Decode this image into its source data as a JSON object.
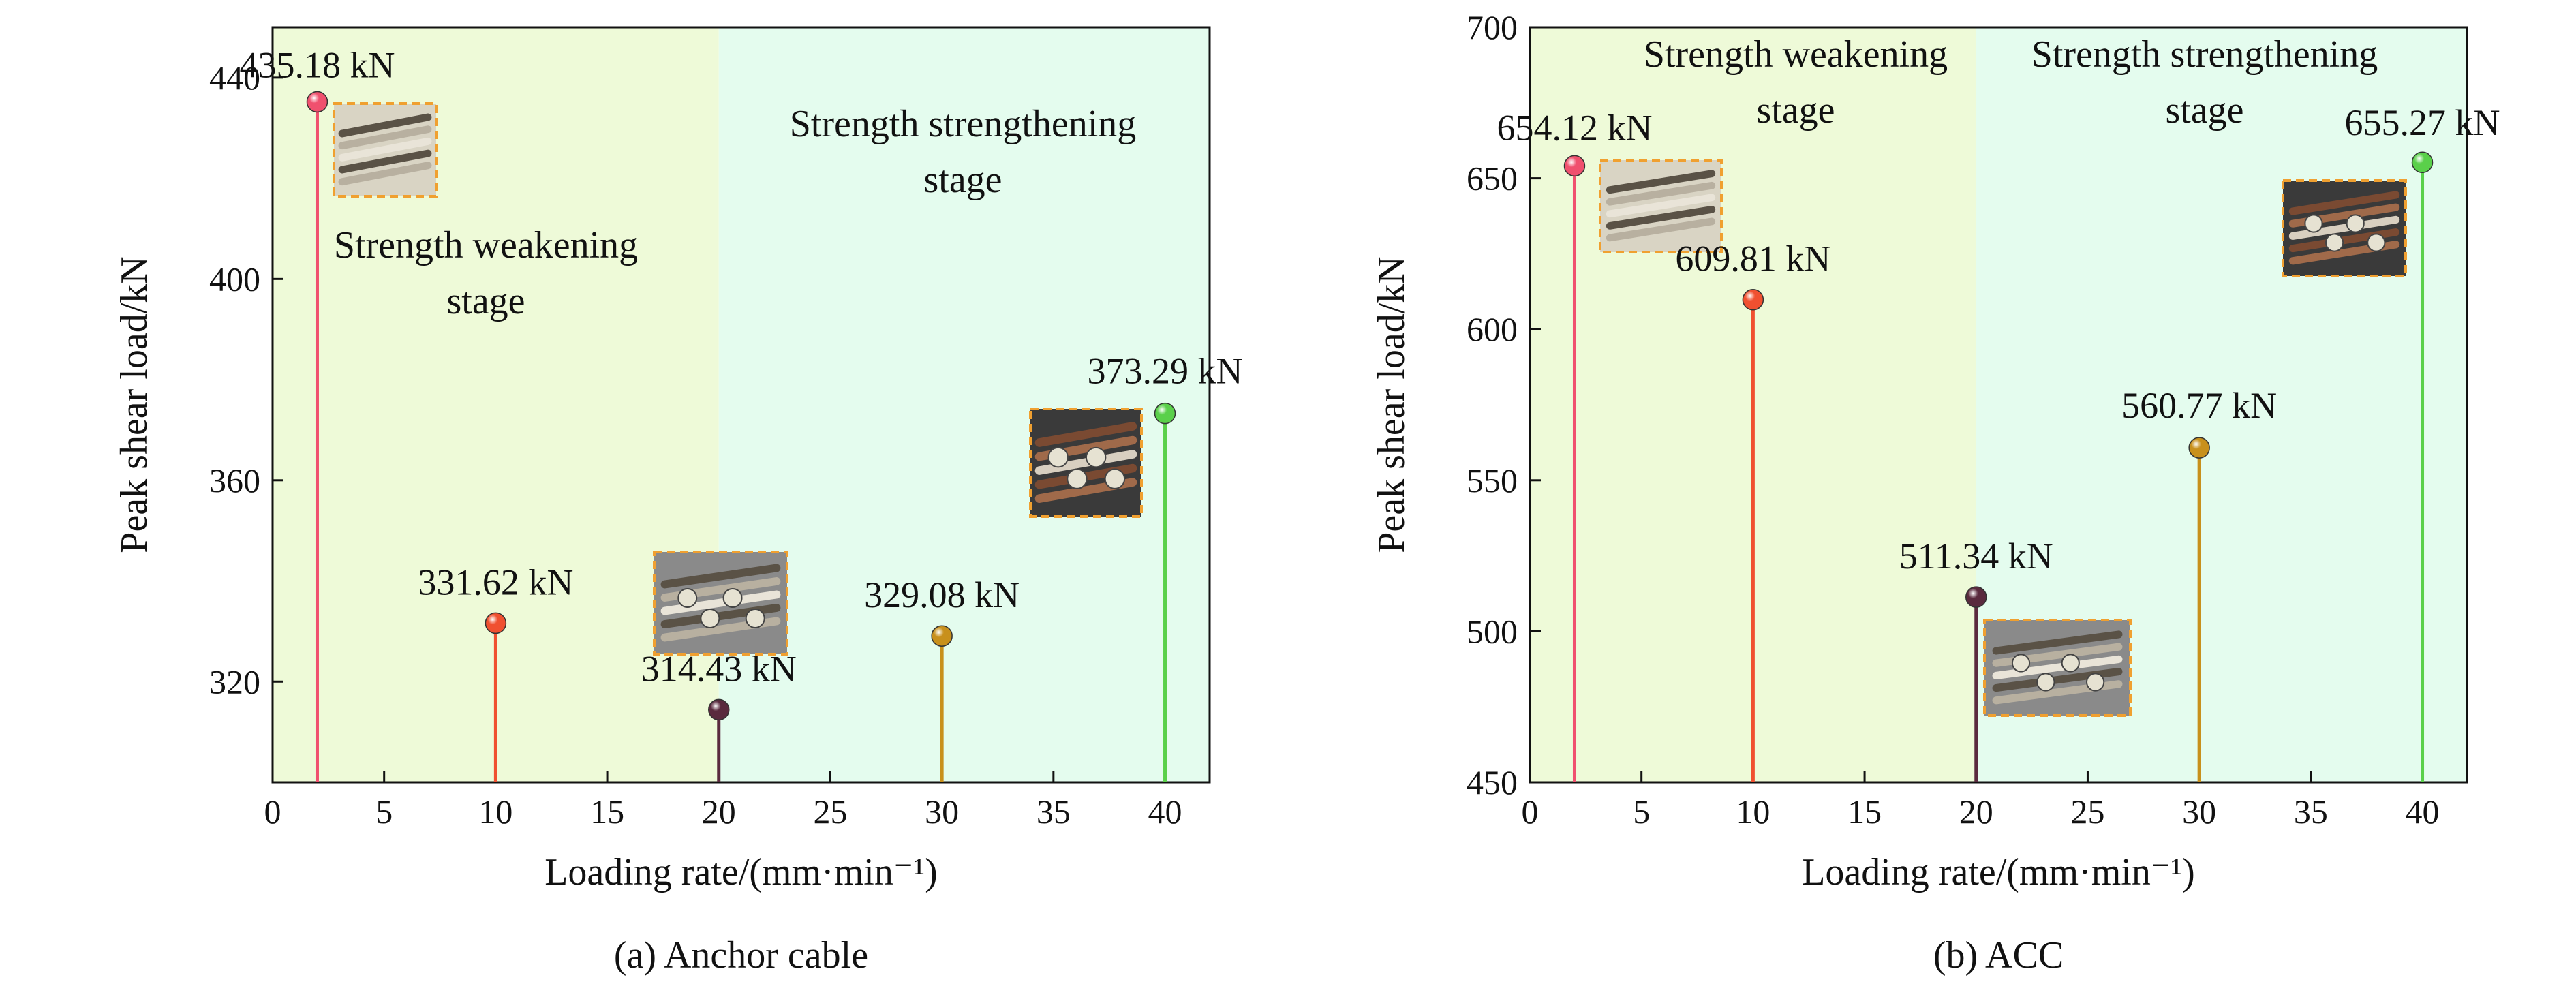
{
  "figure": {
    "panels": [
      {
        "caption": "(a) Anchor cable",
        "xlabel": "Loading rate/(mm·min⁻¹)",
        "ylabel": "Peak shear load/kN",
        "regions": [
          {
            "label_lines": [
              "Strength weakening",
              "stage"
            ],
            "x_range": [
              0,
              20
            ],
            "color": "#eefad8"
          },
          {
            "label_lines": [
              "Strength strengthening",
              "stage"
            ],
            "x_range": [
              20,
              42
            ],
            "color": "#e4fcee"
          }
        ]
      },
      {
        "caption": "(b) ACC",
        "xlabel": "Loading rate/(mm·min⁻¹)",
        "ylabel": "Peak shear load/kN",
        "regions": [
          {
            "label_lines": [
              "Strength weakening",
              "stage"
            ],
            "x_range": [
              0,
              20
            ],
            "color": "#eefad8"
          },
          {
            "label_lines": [
              "Strength strengthening",
              "stage"
            ],
            "x_range": [
              20,
              42
            ],
            "color": "#e4fcee"
          }
        ]
      }
    ]
  },
  "chart_data": [
    {
      "type": "stem",
      "title": "",
      "xlabel": "Loading rate/(mm·min⁻¹)",
      "ylabel": "Peak shear load/kN",
      "xlim": [
        0,
        42
      ],
      "ylim": [
        300,
        450
      ],
      "xticks": [
        0,
        5,
        10,
        15,
        20,
        25,
        30,
        35,
        40
      ],
      "yticks": [
        320,
        360,
        400,
        440
      ],
      "points": [
        {
          "x": 2,
          "y": 435.18,
          "label": "435.18 kN",
          "color": "#f0506e"
        },
        {
          "x": 10,
          "y": 331.62,
          "label": "331.62 kN",
          "color": "#f05030"
        },
        {
          "x": 20,
          "y": 314.43,
          "label": "314.43 kN",
          "color": "#5a2a3e"
        },
        {
          "x": 30,
          "y": 329.08,
          "label": "329.08 kN",
          "color": "#c8901c"
        },
        {
          "x": 40,
          "y": 373.29,
          "label": "373.29 kN",
          "color": "#5ad04a"
        }
      ]
    },
    {
      "type": "stem",
      "title": "",
      "xlabel": "Loading rate/(mm·min⁻¹)",
      "ylabel": "Peak shear load/kN",
      "xlim": [
        0,
        42
      ],
      "ylim": [
        450,
        700
      ],
      "xticks": [
        0,
        5,
        10,
        15,
        20,
        25,
        30,
        35,
        40
      ],
      "yticks": [
        450,
        500,
        550,
        600,
        650,
        700
      ],
      "points": [
        {
          "x": 2,
          "y": 654.12,
          "label": "654.12 kN",
          "color": "#f0506e"
        },
        {
          "x": 10,
          "y": 609.81,
          "label": "609.81 kN",
          "color": "#f05030"
        },
        {
          "x": 20,
          "y": 511.34,
          "label": "511.34 kN",
          "color": "#5a2a3e"
        },
        {
          "x": 30,
          "y": 560.77,
          "label": "560.77 kN",
          "color": "#c8901c"
        },
        {
          "x": 40,
          "y": 655.27,
          "label": "655.27 kN",
          "color": "#5ad04a"
        }
      ]
    }
  ]
}
